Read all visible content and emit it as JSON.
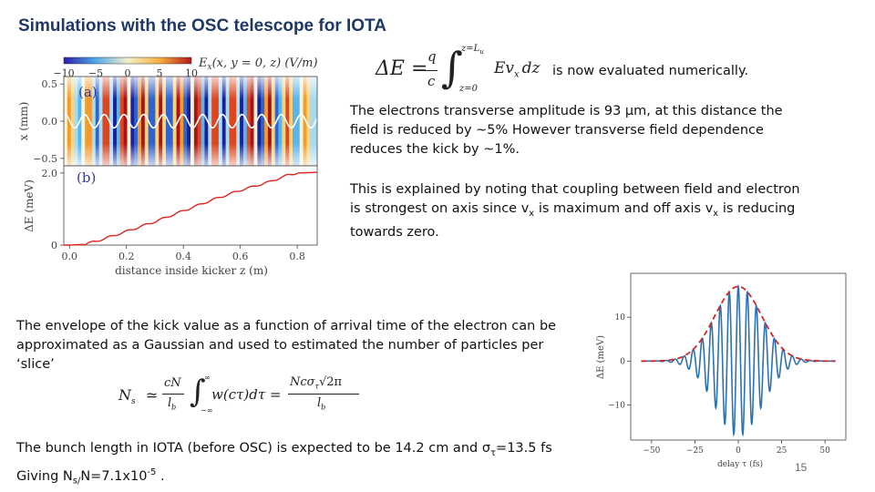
{
  "title": "Simulations with the OSC telescope for IOTA",
  "para1_tail": "is now evaluated numerically.",
  "para2": "The electrons transverse amplitude is 93 μm, at this distance the field is reduced by ~5% However transverse field dependence reduces the kick by ~1%.",
  "para3": {
    "a": "This is explained by noting that coupling between field and electron is strongest on axis since v",
    "sub1": "x",
    "b": " is maximum and off axis  v",
    "sub2": "x",
    "c": " is reducing towards zero."
  },
  "para4": "The envelope of the kick value as a function of arrival time of the electron can be approximated as a Gaussian and used to estimated the number of particles per ‘slice’",
  "para5": {
    "l1a": "The bunch length in IOTA (before OSC) is expected to be 14.2 cm and σ",
    "l1sub": "τ",
    "l1b": "=13.5 fs",
    "l2a": "Giving N",
    "l2sub": "s/",
    "l2b": "N=7.1x10",
    "l2sup": "-5",
    "l2c": " ."
  },
  "page_number": "15",
  "equations": {
    "kick": {
      "lhs": "ΔE =",
      "frac_num": "q",
      "frac_den": "c",
      "upper": "z=L",
      "upper_sub": "u",
      "lower": "z=0",
      "integrand": "Ev",
      "integrand_sub": "x",
      "dz": "dz"
    },
    "slice": {
      "lhs": "N",
      "lhs_sub": "s",
      "approx": "≃",
      "n1_num": "cN",
      "n1_den": "l",
      "n1_den_sub": "b",
      "integrand": "w(cτ)dτ =",
      "n2_num": "Ncσ",
      "n2_num_sub": "τ",
      "n2_num_root": "√2π",
      "n2_den": "l",
      "n2_den_sub": "b",
      "integral_lower": "−∞",
      "integral_upper": "∞"
    }
  },
  "chart_data": [
    {
      "type": "heatmap",
      "panel_label": "(a)",
      "colorbar_label": "E",
      "colorbar_label_sub": "x",
      "colorbar_label_tail": "(x, y = 0, z) (V/m)",
      "colorbar_ticks": [
        "−10",
        "−5",
        "0",
        "5",
        "10"
      ],
      "clim": [
        -10,
        10
      ],
      "ylabel": "x (mm)",
      "yticks": [
        "0.5",
        "0.0",
        "−0.5"
      ],
      "ylim": [
        -0.6,
        0.6
      ],
      "xlim": [
        -0.02,
        0.87
      ],
      "field_oscillations_in_window": 14,
      "electron_trajectory_amplitude_mm": 0.09
    },
    {
      "type": "line",
      "panel_label": "(b)",
      "ylabel": "ΔE (meV)",
      "yticks": [
        "0",
        "2.0"
      ],
      "xlabel": "distance inside kicker z (m)",
      "xticks": [
        "0.0",
        "0.2",
        "0.4",
        "0.6",
        "0.8"
      ],
      "xlim": [
        -0.02,
        0.87
      ],
      "ylim": [
        0,
        2.2
      ],
      "series": [
        {
          "x": [
            0.0,
            0.05,
            0.1,
            0.2,
            0.3,
            0.4,
            0.5,
            0.6,
            0.7,
            0.77,
            0.8,
            0.87
          ],
          "y": [
            0.0,
            0.02,
            0.12,
            0.38,
            0.65,
            0.95,
            1.25,
            1.52,
            1.75,
            1.95,
            2.0,
            2.02
          ],
          "color": "#e0241c"
        }
      ]
    },
    {
      "type": "line",
      "ylabel": "ΔE (meV)",
      "xlabel": "delay τ (fs)",
      "xticks": [
        "−50",
        "−25",
        "0",
        "25",
        "50"
      ],
      "yticks": [
        "10",
        "0",
        "−10"
      ],
      "xlim": [
        -62,
        62
      ],
      "ylim": [
        -18,
        20
      ],
      "oscillation_amplitude_meV": 17,
      "oscillation_period_fs": 5.2,
      "gaussian_sigma_fs": 13.5,
      "series": [
        {
          "style": "solid",
          "color": "#2c72b0"
        },
        {
          "style": "dashed",
          "color": "#d62728"
        }
      ]
    }
  ]
}
